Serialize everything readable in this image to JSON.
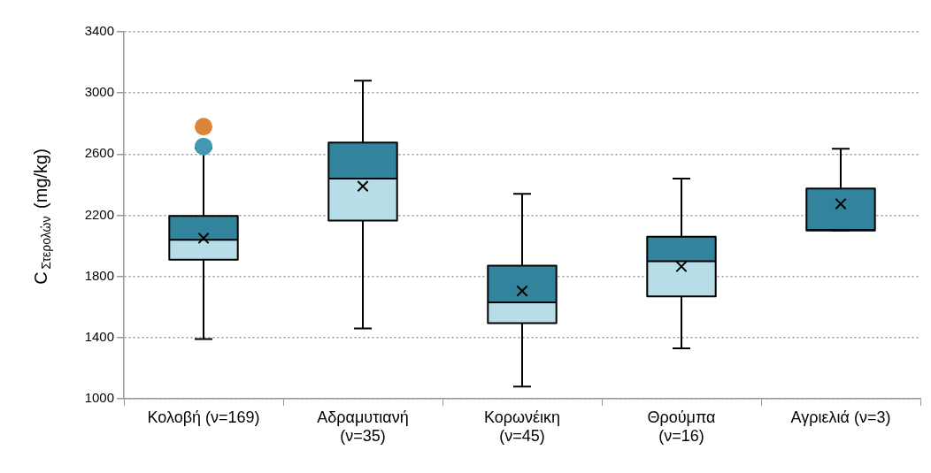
{
  "chart_data": {
    "type": "box",
    "ylabel": "C$_{Στερολών}$ (mg/kg)",
    "categories": [
      "Κολοβή (ν=169)",
      "Αδραμυτιανή (ν=35)",
      "Κορωνέικη (ν=45)",
      "Θρούμπα (ν=16)",
      "Αγριελιά (ν=3)"
    ],
    "ylim": [
      1000,
      3400
    ],
    "yticks": [
      1000,
      1400,
      1800,
      2200,
      2600,
      3000,
      3400
    ],
    "grid": "y",
    "legend": false,
    "series": [
      {
        "marker": "cross",
        "color": "#31849b",
        "colors": [
          "#b7dee8",
          "#b7dee8",
          "#b7dee8",
          "#b7dee8",
          "#b7dee8"
        ],
        "boxes": [
          {
            "low": 1390,
            "q1": 1910,
            "median": 2040,
            "q3": 2195,
            "high": 2640,
            "mean": 2050
          },
          {
            "low": 1460,
            "q1": 2165,
            "median": 2440,
            "q3": 2675,
            "high": 3080,
            "mean": 2390
          },
          {
            "low": 1080,
            "q1": 1495,
            "median": 1630,
            "q3": 1870,
            "high": 2340,
            "mean": 1705
          },
          {
            "low": 1330,
            "q1": 1670,
            "median": 1900,
            "q3": 2060,
            "high": 2440,
            "mean": 1865
          },
          {
            "low": 2100,
            "q1": 2100,
            "median": 2105,
            "q3": 2375,
            "high": 2635,
            "mean": 2275
          }
        ]
      },
      {
        "type": "scatter",
        "marker": "circle",
        "color": "#4399b2",
        "x": [
          "Κολοβή (ν=169)"
        ],
        "values": [
          2650
        ]
      },
      {
        "type": "scatter",
        "marker": "circle",
        "color": "#dd8439",
        "x": [
          "Κολοβή (ν=169)"
        ],
        "values": [
          2780
        ]
      }
    ]
  }
}
